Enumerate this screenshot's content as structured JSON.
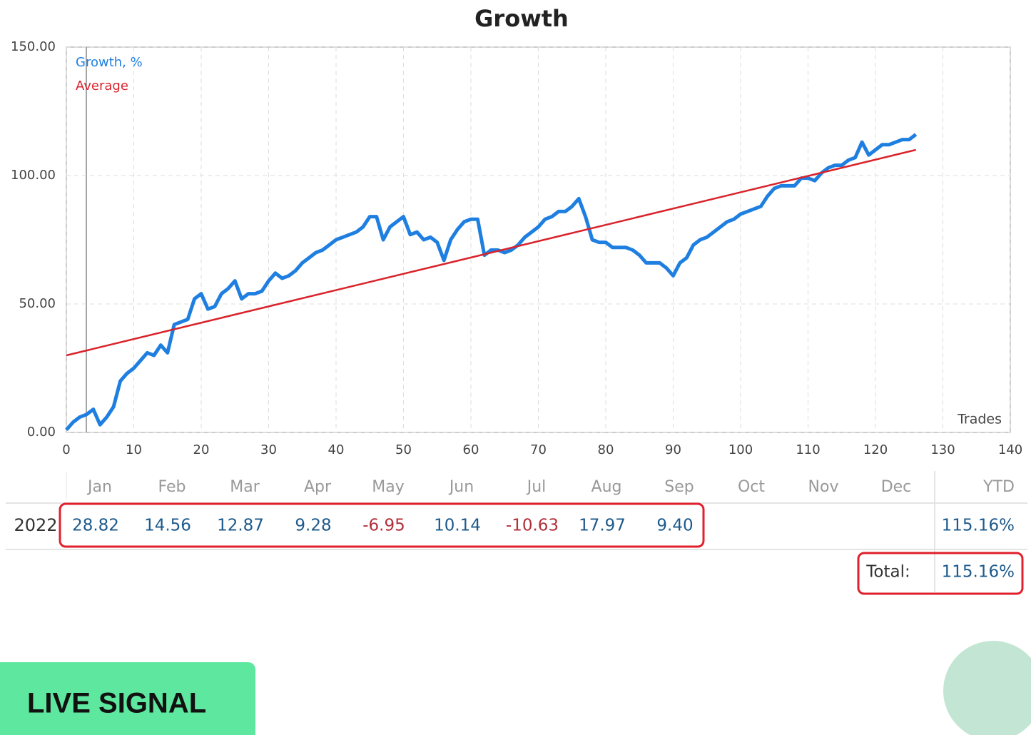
{
  "chart_data": {
    "type": "line",
    "title": "Growth",
    "x_label": "Trades",
    "xlim": [
      0,
      140
    ],
    "xticks": [
      0,
      10,
      20,
      30,
      40,
      50,
      60,
      70,
      80,
      90,
      100,
      110,
      120,
      130,
      140
    ],
    "ylim": [
      0,
      150
    ],
    "yticks": [
      {
        "value": 0,
        "label": "0.00"
      },
      {
        "value": 50,
        "label": "50.00"
      },
      {
        "value": 100,
        "label": "100.00"
      },
      {
        "value": 150,
        "label": "150.00"
      }
    ],
    "grid": true,
    "legend": "top-left",
    "series": [
      {
        "name": "Growth, %",
        "color": "#1f7fe0",
        "x": [
          0,
          1,
          2,
          3,
          4,
          5,
          6,
          7,
          8,
          9,
          10,
          11,
          12,
          13,
          14,
          15,
          16,
          17,
          18,
          19,
          20,
          21,
          22,
          23,
          24,
          25,
          26,
          27,
          28,
          29,
          30,
          31,
          32,
          33,
          34,
          35,
          36,
          37,
          38,
          39,
          40,
          41,
          42,
          43,
          44,
          45,
          46,
          47,
          48,
          49,
          50,
          51,
          52,
          53,
          54,
          55,
          56,
          57,
          58,
          59,
          60,
          61,
          62,
          63,
          64,
          65,
          66,
          67,
          68,
          69,
          70,
          71,
          72,
          73,
          74,
          75,
          76,
          77,
          78,
          79,
          80,
          81,
          82,
          83,
          84,
          85,
          86,
          87,
          88,
          89,
          90,
          91,
          92,
          93,
          94,
          95,
          96,
          97,
          98,
          99,
          100,
          101,
          102,
          103,
          104,
          105,
          106,
          107,
          108,
          109,
          110,
          111,
          112,
          113,
          114,
          115,
          116,
          117,
          118,
          119,
          120,
          121,
          122,
          123,
          124,
          125,
          126
        ],
        "values": [
          1,
          4,
          6,
          7,
          9,
          3,
          6,
          10,
          20,
          23,
          25,
          28,
          31,
          30,
          34,
          31,
          42,
          43,
          44,
          52,
          54,
          48,
          49,
          54,
          56,
          59,
          52,
          54,
          54,
          55,
          59,
          62,
          60,
          61,
          63,
          66,
          68,
          70,
          71,
          73,
          75,
          76,
          77,
          78,
          80,
          84,
          84,
          75,
          80,
          82,
          84,
          77,
          78,
          75,
          76,
          74,
          67,
          75,
          79,
          82,
          83,
          83,
          69,
          71,
          71,
          70,
          71,
          73,
          76,
          78,
          80,
          83,
          84,
          86,
          86,
          88,
          91,
          84,
          75,
          74,
          74,
          72,
          72,
          72,
          71,
          69,
          66,
          66,
          66,
          64,
          61,
          66,
          68,
          73,
          75,
          76,
          78,
          80,
          82,
          83,
          85,
          86,
          87,
          88,
          92,
          95,
          96,
          96,
          96,
          99,
          99,
          98,
          101,
          103,
          104,
          104,
          106,
          107,
          113,
          108,
          110,
          112,
          112,
          113,
          114,
          114,
          116
        ]
      },
      {
        "name": "Average",
        "color": "#d9232b",
        "x": [
          0,
          126
        ],
        "values": [
          30,
          110
        ]
      }
    ]
  },
  "table": {
    "columns": [
      "Jan",
      "Feb",
      "Mar",
      "Apr",
      "May",
      "Jun",
      "Jul",
      "Aug",
      "Sep",
      "Oct",
      "Nov",
      "Dec",
      "YTD"
    ],
    "rows": [
      {
        "label": "2022",
        "values": [
          "28.82",
          "14.56",
          "12.87",
          "9.28",
          "-6.95",
          "10.14",
          "-10.63",
          "17.97",
          "9.40"
        ],
        "ytd": "115.16%"
      }
    ],
    "total_label": "Total:",
    "total": "115.16%"
  },
  "badge": "LIVE SIGNAL"
}
